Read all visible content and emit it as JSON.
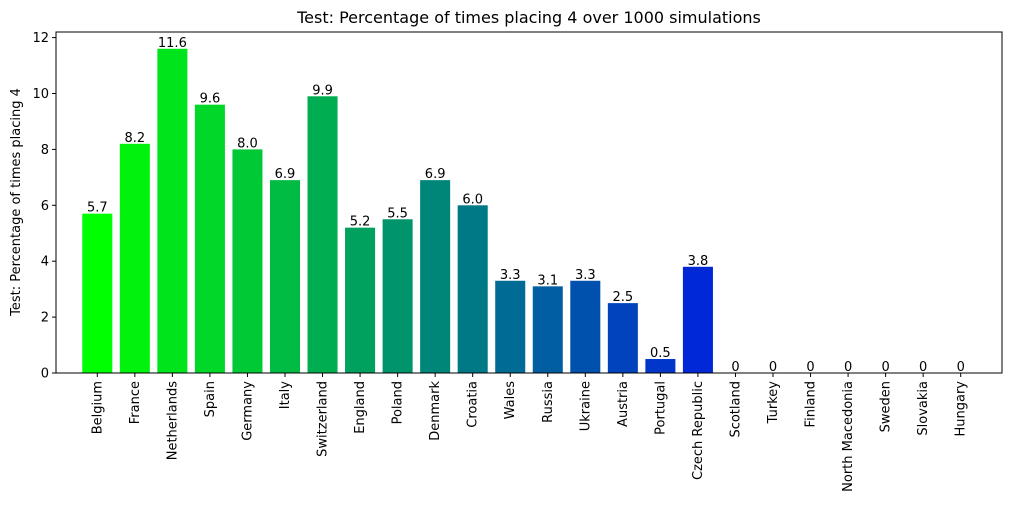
{
  "chart_data": {
    "type": "bar",
    "title": "Test: Percentage of times placing 4 over 1000 simulations",
    "xlabel": "",
    "ylabel": "Test: Percentage of times placing 4",
    "ylim": [
      0,
      12.2
    ],
    "yticks": [
      0,
      2,
      4,
      6,
      8,
      10,
      12
    ],
    "grid": false,
    "categories": [
      "Belgium",
      "France",
      "Netherlands",
      "Spain",
      "Germany",
      "Italy",
      "Switzerland",
      "England",
      "Poland",
      "Denmark",
      "Croatia",
      "Wales",
      "Russia",
      "Ukraine",
      "Austria",
      "Portugal",
      "Czech Republic",
      "Scotland",
      "Turkey",
      "Finland",
      "North Macedonia",
      "Sweden",
      "Slovakia",
      "Hungary"
    ],
    "values": [
      5.7,
      8.2,
      11.6,
      9.6,
      8.0,
      6.9,
      9.9,
      5.2,
      5.5,
      6.9,
      6.0,
      3.3,
      3.1,
      3.3,
      2.5,
      0.5,
      3.8,
      0,
      0,
      0,
      0,
      0,
      0,
      0
    ],
    "value_labels": [
      "5.7",
      "8.2",
      "11.6",
      "9.6",
      "8.0",
      "6.9",
      "9.9",
      "5.2",
      "5.5",
      "6.9",
      "6.0",
      "3.3",
      "3.1",
      "3.3",
      "2.5",
      "0.5",
      "3.8",
      "0",
      "0",
      "0",
      "0",
      "0",
      "0",
      "0"
    ],
    "colors": [
      "#00ff00",
      "#00f20d",
      "#00e41b",
      "#00d728",
      "#00c936",
      "#00bc43",
      "#00ae51",
      "#00a15e",
      "#00946b",
      "#008679",
      "#007986",
      "#006b94",
      "#005ea1",
      "#0051ae",
      "#0043bc",
      "#0036c9",
      "#0028d7",
      "#001be4",
      "#000df2",
      "#0000ff",
      "#0000ff",
      "#0000ff",
      "#0000ff",
      "#0000ff"
    ]
  }
}
